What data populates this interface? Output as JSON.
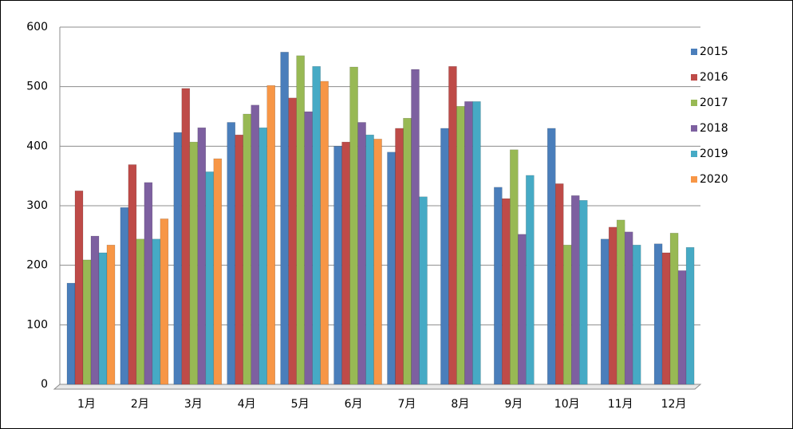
{
  "chart_data": {
    "type": "bar",
    "categories": [
      "1月",
      "2月",
      "3月",
      "4月",
      "5月",
      "6月",
      "7月",
      "8月",
      "9月",
      "10月",
      "11月",
      "12月"
    ],
    "series": [
      {
        "name": "2015",
        "color": "#4a7ebb",
        "values": [
          170,
          297,
          423,
          440,
          558,
          400,
          390,
          430,
          331,
          430,
          244,
          236
        ]
      },
      {
        "name": "2016",
        "color": "#be4b48",
        "values": [
          325,
          369,
          497,
          419,
          481,
          407,
          430,
          534,
          312,
          337,
          264,
          221
        ]
      },
      {
        "name": "2017",
        "color": "#98b954",
        "values": [
          209,
          244,
          407,
          454,
          552,
          533,
          447,
          467,
          394,
          234,
          276,
          254
        ]
      },
      {
        "name": "2018",
        "color": "#7d60a0",
        "values": [
          249,
          339,
          431,
          469,
          458,
          440,
          529,
          475,
          252,
          317,
          256,
          191
        ]
      },
      {
        "name": "2019",
        "color": "#46aac5",
        "values": [
          221,
          244,
          357,
          431,
          534,
          419,
          315,
          475,
          351,
          309,
          234,
          230
        ]
      },
      {
        "name": "2020",
        "color": "#f79646",
        "values": [
          234,
          278,
          379,
          502,
          509,
          412,
          null,
          null,
          null,
          null,
          null,
          null
        ]
      }
    ],
    "ylim": [
      0,
      600
    ],
    "yticks": [
      0,
      100,
      200,
      300,
      400,
      500,
      600
    ],
    "grid": true,
    "legend": "right"
  }
}
